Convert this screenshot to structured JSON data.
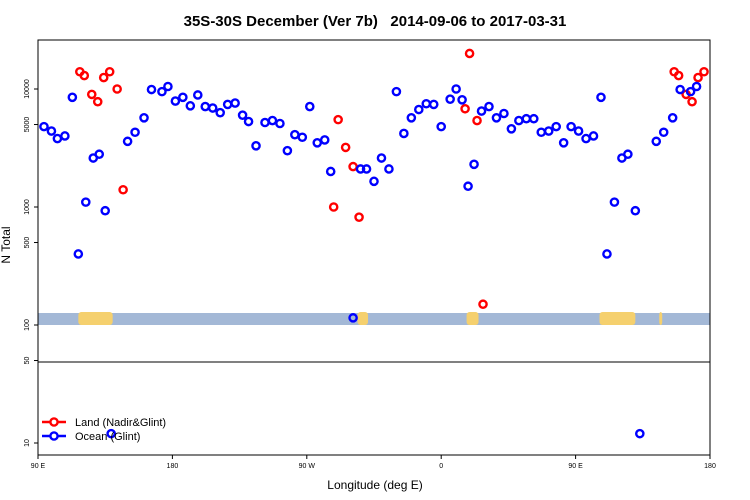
{
  "chart_data": {
    "type": "scatter",
    "title": "35S-30S December (Ver 7b)   2014-09-06 to 2017-03-31",
    "xlabel": "Longitude (deg E)",
    "ylabel": "N Total",
    "x_ticks": [
      {
        "value": 90,
        "label": "90 E"
      },
      {
        "value": 180,
        "label": "180"
      },
      {
        "value": 270,
        "label": "90 W"
      },
      {
        "value": 360,
        "label": "0"
      },
      {
        "value": 450,
        "label": "90 E"
      },
      {
        "value": 540,
        "label": "180"
      }
    ],
    "y_ticks": [
      {
        "value": 10,
        "label": "10"
      },
      {
        "value": 50,
        "label": "50"
      },
      {
        "value": 100,
        "label": "100"
      },
      {
        "value": 500,
        "label": "500"
      },
      {
        "value": 1000,
        "label": "1000"
      },
      {
        "value": 5000,
        "label": "5000"
      },
      {
        "value": 10000,
        "label": "10000"
      }
    ],
    "xlim": [
      90,
      540
    ],
    "y_scale": "log",
    "legend": {
      "position": "bottom-left",
      "entries": [
        {
          "label": "Land (Nadir&Glint)",
          "color": "#ff0000"
        },
        {
          "label": "Ocean (Glint)",
          "color": "#0000ff"
        }
      ]
    },
    "series": [
      {
        "name": "Land (Nadir&Glint)",
        "color": "#ff0000",
        "points": [
          [
            118,
            14000
          ],
          [
            121,
            13000
          ],
          [
            126,
            9000
          ],
          [
            130,
            7800
          ],
          [
            134,
            12500
          ],
          [
            138,
            14000
          ],
          [
            143,
            10000
          ],
          [
            147,
            1400
          ],
          [
            288,
            1000
          ],
          [
            291,
            5500
          ],
          [
            296,
            3200
          ],
          [
            301,
            2200
          ],
          [
            305,
            820
          ],
          [
            376,
            6800
          ],
          [
            379,
            20000
          ],
          [
            384,
            5400
          ],
          [
            388,
            150
          ],
          [
            516,
            14000
          ],
          [
            519,
            13000
          ],
          [
            524,
            9000
          ],
          [
            528,
            7800
          ],
          [
            532,
            12500
          ],
          [
            536,
            14000
          ],
          [
            541,
            10000
          ],
          [
            545,
            1400
          ]
        ]
      },
      {
        "name": "Ocean (Glint)",
        "color": "#0000ff",
        "points": [
          [
            94,
            4800
          ],
          [
            99,
            4400
          ],
          [
            103,
            3800
          ],
          [
            108,
            4000
          ],
          [
            113,
            8500
          ],
          [
            117,
            400
          ],
          [
            122,
            1100
          ],
          [
            127,
            2600
          ],
          [
            131,
            2800
          ],
          [
            135,
            930
          ],
          [
            139,
            12
          ],
          [
            150,
            3600
          ],
          [
            155,
            4300
          ],
          [
            161,
            5700
          ],
          [
            166,
            9900
          ],
          [
            173,
            9500
          ],
          [
            177,
            10500
          ],
          [
            182,
            7900
          ],
          [
            187,
            8500
          ],
          [
            192,
            7200
          ],
          [
            197,
            8900
          ],
          [
            202,
            7100
          ],
          [
            207,
            6900
          ],
          [
            212,
            6300
          ],
          [
            217,
            7400
          ],
          [
            222,
            7600
          ],
          [
            227,
            6000
          ],
          [
            231,
            5300
          ],
          [
            236,
            3300
          ],
          [
            242,
            5200
          ],
          [
            247,
            5400
          ],
          [
            252,
            5100
          ],
          [
            257,
            3000
          ],
          [
            262,
            4100
          ],
          [
            267,
            3900
          ],
          [
            272,
            7100
          ],
          [
            277,
            3500
          ],
          [
            282,
            3700
          ],
          [
            286,
            2000
          ],
          [
            301,
            115
          ],
          [
            306,
            2100
          ],
          [
            310,
            2100
          ],
          [
            315,
            1650
          ],
          [
            320,
            2600
          ],
          [
            325,
            2100
          ],
          [
            330,
            9500
          ],
          [
            335,
            4200
          ],
          [
            340,
            5700
          ],
          [
            345,
            6700
          ],
          [
            350,
            7500
          ],
          [
            355,
            7400
          ],
          [
            360,
            4800
          ],
          [
            366,
            8200
          ],
          [
            370,
            10000
          ],
          [
            374,
            8100
          ],
          [
            378,
            1500
          ],
          [
            382,
            2300
          ],
          [
            387,
            6500
          ],
          [
            392,
            7100
          ],
          [
            397,
            5700
          ],
          [
            402,
            6200
          ],
          [
            407,
            4600
          ],
          [
            412,
            5400
          ],
          [
            417,
            5600
          ],
          [
            422,
            5600
          ],
          [
            427,
            4300
          ],
          [
            432,
            4400
          ],
          [
            437,
            4800
          ],
          [
            442,
            3500
          ],
          [
            447,
            4800
          ],
          [
            452,
            4400
          ],
          [
            457,
            3800
          ],
          [
            462,
            4000
          ],
          [
            467,
            8500
          ],
          [
            471,
            400
          ],
          [
            476,
            1100
          ],
          [
            481,
            2600
          ],
          [
            485,
            2800
          ],
          [
            490,
            930
          ],
          [
            493,
            12
          ],
          [
            504,
            3600
          ],
          [
            509,
            4300
          ],
          [
            515,
            5700
          ],
          [
            520,
            9900
          ],
          [
            527,
            9500
          ],
          [
            531,
            10500
          ]
        ]
      }
    ]
  }
}
